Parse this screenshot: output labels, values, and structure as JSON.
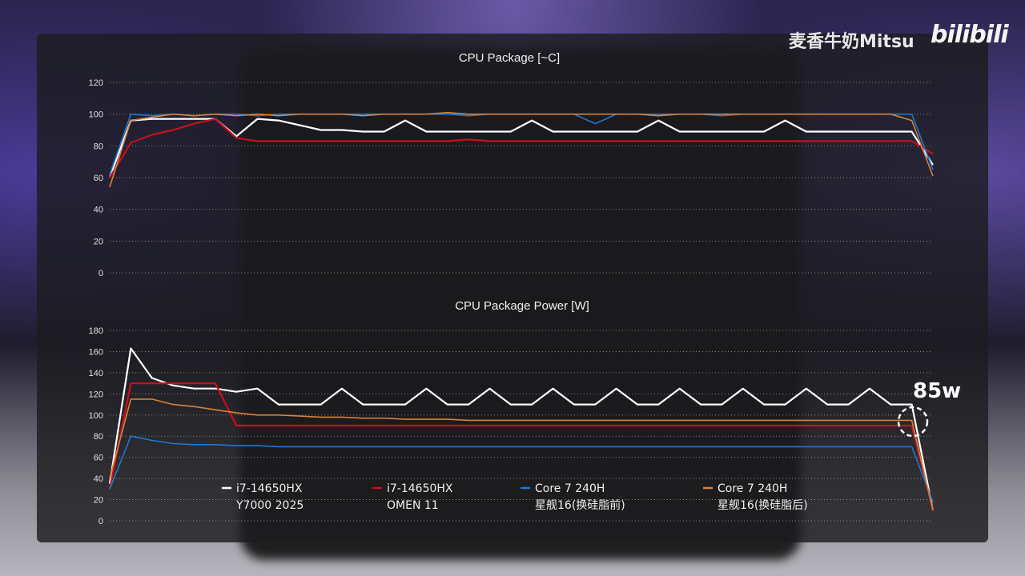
{
  "watermark": {
    "author": "麦香牛奶Mitsu",
    "logo": "bilibili"
  },
  "annotation": {
    "label": "85w"
  },
  "legend": [
    {
      "line1": "i7-14650HX",
      "line2": "Y7000 2025",
      "color": "#ffffff"
    },
    {
      "line1": "i7-14650HX",
      "line2": "OMEN 11",
      "color": "#c8101a"
    },
    {
      "line1": "Core 7 240H",
      "line2": "星舰16(换硅脂前)",
      "color": "#1e78d0"
    },
    {
      "line1": "Core 7 240H",
      "line2": "星舰16(换硅脂后)",
      "color": "#d8823a"
    }
  ],
  "chart_data": [
    {
      "type": "line",
      "title": "CPU Package [~C]",
      "ylim": [
        0,
        120
      ],
      "yticks": [
        0,
        20,
        40,
        60,
        80,
        100,
        120
      ],
      "grid": true,
      "series": [
        {
          "name": "i7-14650HX Y7000 2025",
          "values": [
            60,
            96,
            97,
            97,
            97,
            97,
            86,
            97,
            96,
            93,
            90,
            90,
            89,
            89,
            96,
            89,
            89,
            89,
            89,
            89,
            96,
            89,
            89,
            89,
            89,
            89,
            96,
            89,
            89,
            89,
            89,
            89,
            96,
            89,
            89,
            89,
            89,
            89,
            89,
            68
          ]
        },
        {
          "name": "i7-14650HX OMEN 11",
          "values": [
            60,
            82,
            87,
            90,
            94,
            97,
            85,
            83,
            83,
            83,
            83,
            83,
            83,
            83,
            83,
            83,
            83,
            84,
            83,
            83,
            83,
            83,
            83,
            83,
            83,
            83,
            83,
            83,
            83,
            83,
            83,
            83,
            83,
            83,
            83,
            83,
            83,
            83,
            83,
            75
          ]
        },
        {
          "name": "Core 7 240H 星舰16(换硅脂前)",
          "values": [
            62,
            100,
            99,
            100,
            99,
            100,
            100,
            99,
            100,
            100,
            100,
            100,
            100,
            100,
            100,
            100,
            100,
            99,
            100,
            100,
            100,
            100,
            100,
            94,
            100,
            100,
            100,
            100,
            100,
            99,
            100,
            100,
            100,
            100,
            100,
            100,
            100,
            100,
            100,
            65
          ]
        },
        {
          "name": "Core 7 240H 星舰16(换硅脂后)",
          "values": [
            54,
            96,
            98,
            100,
            99,
            100,
            99,
            100,
            99,
            100,
            100,
            100,
            99,
            100,
            100,
            100,
            101,
            100,
            100,
            100,
            100,
            100,
            100,
            100,
            100,
            100,
            99,
            100,
            100,
            100,
            100,
            100,
            100,
            100,
            100,
            100,
            100,
            100,
            96,
            61
          ]
        }
      ]
    },
    {
      "type": "line",
      "title": "CPU Package Power [W]",
      "ylim": [
        0,
        180
      ],
      "yticks": [
        0,
        20,
        40,
        60,
        80,
        100,
        120,
        140,
        160,
        180
      ],
      "grid": true,
      "series": [
        {
          "name": "i7-14650HX Y7000 2025",
          "values": [
            35,
            163,
            135,
            128,
            125,
            125,
            122,
            125,
            110,
            110,
            110,
            125,
            110,
            110,
            110,
            125,
            110,
            110,
            125,
            110,
            110,
            125,
            110,
            110,
            125,
            110,
            110,
            125,
            110,
            110,
            125,
            110,
            110,
            125,
            110,
            110,
            125,
            110,
            110,
            10
          ]
        },
        {
          "name": "i7-14650HX OMEN 11",
          "values": [
            30,
            130,
            130,
            130,
            130,
            130,
            90,
            90,
            90,
            90,
            90,
            90,
            90,
            90,
            90,
            90,
            90,
            90,
            90,
            90,
            90,
            90,
            90,
            90,
            90,
            90,
            90,
            90,
            90,
            90,
            90,
            90,
            90,
            90,
            90,
            90,
            90,
            90,
            90,
            10
          ]
        },
        {
          "name": "Core 7 240H 星舰16(换硅脂前)",
          "values": [
            30,
            80,
            76,
            73,
            72,
            72,
            71,
            71,
            70,
            70,
            70,
            70,
            70,
            70,
            70,
            70,
            70,
            70,
            70,
            70,
            70,
            70,
            70,
            70,
            70,
            70,
            70,
            70,
            70,
            70,
            70,
            70,
            70,
            70,
            70,
            70,
            70,
            70,
            70,
            18
          ]
        },
        {
          "name": "Core 7 240H 星舰16(换硅脂后)",
          "values": [
            40,
            115,
            115,
            110,
            108,
            105,
            102,
            100,
            100,
            99,
            98,
            98,
            97,
            97,
            96,
            96,
            96,
            95,
            95,
            95,
            95,
            95,
            95,
            95,
            95,
            95,
            95,
            95,
            95,
            95,
            95,
            95,
            95,
            95,
            95,
            95,
            95,
            95,
            95,
            10
          ]
        }
      ]
    }
  ]
}
